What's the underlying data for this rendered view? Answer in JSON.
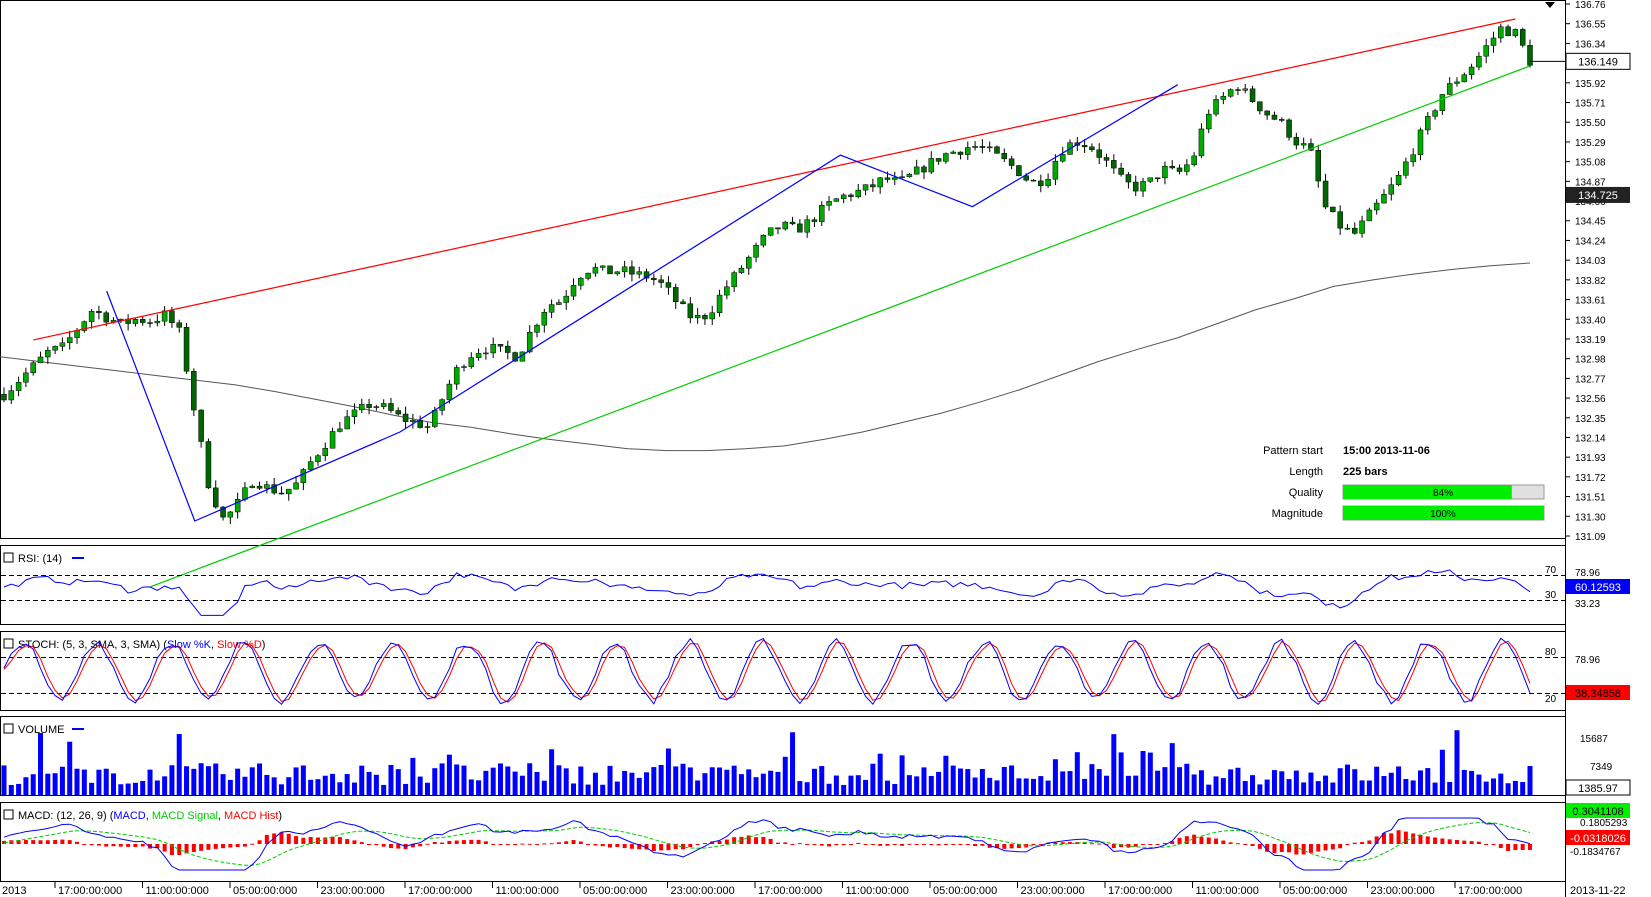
{
  "chart_data": {
    "type": "candlestick",
    "price_axis": {
      "ticks": [
        "136.76",
        "136.55",
        "136.34",
        "136.13",
        "135.92",
        "135.71",
        "135.50",
        "135.29",
        "135.08",
        "134.87",
        "134.66",
        "134.45",
        "134.24",
        "134.03",
        "133.82",
        "133.61",
        "133.40",
        "133.19",
        "132.98",
        "132.77",
        "132.56",
        "132.35",
        "132.14",
        "131.93",
        "131.72",
        "131.51",
        "131.30",
        "131.09"
      ],
      "range": [
        131.09,
        136.76
      ],
      "current_price": "136.149",
      "ma_value": "134.725"
    },
    "time_axis": {
      "left_edge": "2013",
      "right_edge": "2013-11-22",
      "ticks": [
        "17:00:00:000",
        "11:00:00:000",
        "05:00:00:000",
        "23:00:00:000",
        "17:00:00:000",
        "11:00:00:000",
        "05:00:00:000",
        "23:00:00:000",
        "17:00:00:000",
        "11:00:00:000",
        "05:00:00:000",
        "23:00:00:000",
        "17:00:00:000",
        "11:00:00:000",
        "05:00:00:000",
        "23:00:00:000",
        "17:00:00:000"
      ]
    },
    "close_path": [
      132.6,
      132.75,
      132.9,
      133.05,
      133.1,
      133.3,
      133.5,
      133.42,
      133.35,
      133.4,
      133.38,
      133.45,
      133.25,
      132.4,
      131.6,
      131.25,
      131.45,
      131.7,
      131.6,
      131.55,
      131.65,
      131.9,
      132.1,
      132.3,
      132.4,
      132.5,
      132.45,
      132.35,
      132.3,
      132.25,
      132.6,
      132.9,
      133.05,
      133.1,
      133.05,
      133.0,
      133.3,
      133.55,
      133.6,
      133.85,
      133.95,
      133.9,
      133.92,
      133.88,
      133.85,
      133.75,
      133.55,
      133.4,
      133.45,
      133.7,
      133.9,
      134.1,
      134.3,
      134.4,
      134.35,
      134.45,
      134.6,
      134.7,
      134.75,
      134.8,
      134.9,
      134.85,
      134.95,
      135.05,
      135.15,
      135.2,
      135.25,
      135.2,
      135.1,
      135.0,
      134.85,
      134.9,
      135.2,
      135.3,
      135.25,
      135.1,
      134.9,
      134.8,
      134.85,
      135.0,
      134.95,
      135.1,
      135.6,
      135.75,
      135.9,
      135.75,
      135.6,
      135.5,
      135.3,
      135.2,
      134.6,
      134.4,
      134.3,
      134.5,
      134.7,
      134.9,
      135.2,
      135.5,
      135.8,
      135.95,
      136.1,
      136.3,
      136.5,
      136.45,
      136.15
    ],
    "moving_average_200": [
      133.0,
      132.95,
      132.9,
      132.85,
      132.8,
      132.75,
      132.7,
      132.63,
      132.55,
      132.47,
      132.38,
      132.3,
      132.25,
      132.18,
      132.12,
      132.07,
      132.02,
      132.0,
      132.0,
      132.02,
      132.05,
      132.12,
      132.2,
      132.3,
      132.4,
      132.52,
      132.65,
      132.8,
      132.95,
      133.08,
      133.2,
      133.35,
      133.5,
      133.62,
      133.75,
      133.82,
      133.88,
      133.93,
      133.97,
      134.0
    ],
    "pattern_lines": [
      {
        "name": "resistance",
        "color": "#ff0000",
        "from": [
          2,
          133.18
        ],
        "to": [
          103,
          136.6
        ]
      },
      {
        "name": "support",
        "color": "#00cc00",
        "from": [
          10,
          130.55
        ],
        "to": [
          104,
          136.1
        ]
      }
    ],
    "zigzag": [
      [
        7,
        133.7
      ],
      [
        13,
        131.25
      ],
      [
        27,
        132.2
      ],
      [
        57,
        135.15
      ],
      [
        66,
        134.6
      ],
      [
        80,
        135.9
      ]
    ],
    "pattern_info": {
      "labels": {
        "start": "Pattern start",
        "length": "Length",
        "quality": "Quality",
        "magnitude": "Magnitude"
      },
      "start": "15:00 2013-11-06",
      "length": "225 bars",
      "quality": "84%",
      "magnitude": "100%",
      "quality_value": 0.84,
      "magnitude_value": 1.0
    },
    "rsi": {
      "label": "RSI: (14)",
      "levels": [
        "70",
        "30"
      ],
      "axis_ticks": [
        "78.96",
        "33.23"
      ],
      "current": "60.12593"
    },
    "stoch": {
      "label_prefix": "STOCH: (5, 3, SMA, 3, SMA) (",
      "k_label": "Slow %K",
      "sep": ", ",
      "d_label": "Slow %D",
      "label_suffix": ")",
      "levels": [
        "80",
        "20"
      ],
      "axis_ticks": [
        "78.96"
      ],
      "current": "38.34858"
    },
    "volume": {
      "label": "VOLUME",
      "axis_ticks": [
        "15687",
        "7349"
      ],
      "current": "1385.97"
    },
    "macd": {
      "label_prefix": "MACD: (12, 26, 9) (",
      "macd_label": "MACD",
      "sep1": ", ",
      "signal_label": "MACD Signal",
      "sep2": ", ",
      "hist_label": "MACD Hist",
      "label_suffix": ")",
      "axis_ticks": [
        "0.1805293",
        "-0.1834767"
      ],
      "current_macd": "0.3041108",
      "current_hist": "-0.0318026"
    },
    "colors": {
      "bull_candle": "#00aa00",
      "bear_candle": "#006600",
      "resistance": "#ff0000",
      "support": "#00cc00",
      "zigzag": "#0000ff",
      "ma": "#555555",
      "rsi": "#0000ff",
      "stoch_k": "#0000ff",
      "stoch_d": "#ff0000",
      "volume": "#0000ff",
      "macd": "#0000ff",
      "macd_signal": "#00cc00",
      "macd_hist": "#ff0000"
    }
  }
}
